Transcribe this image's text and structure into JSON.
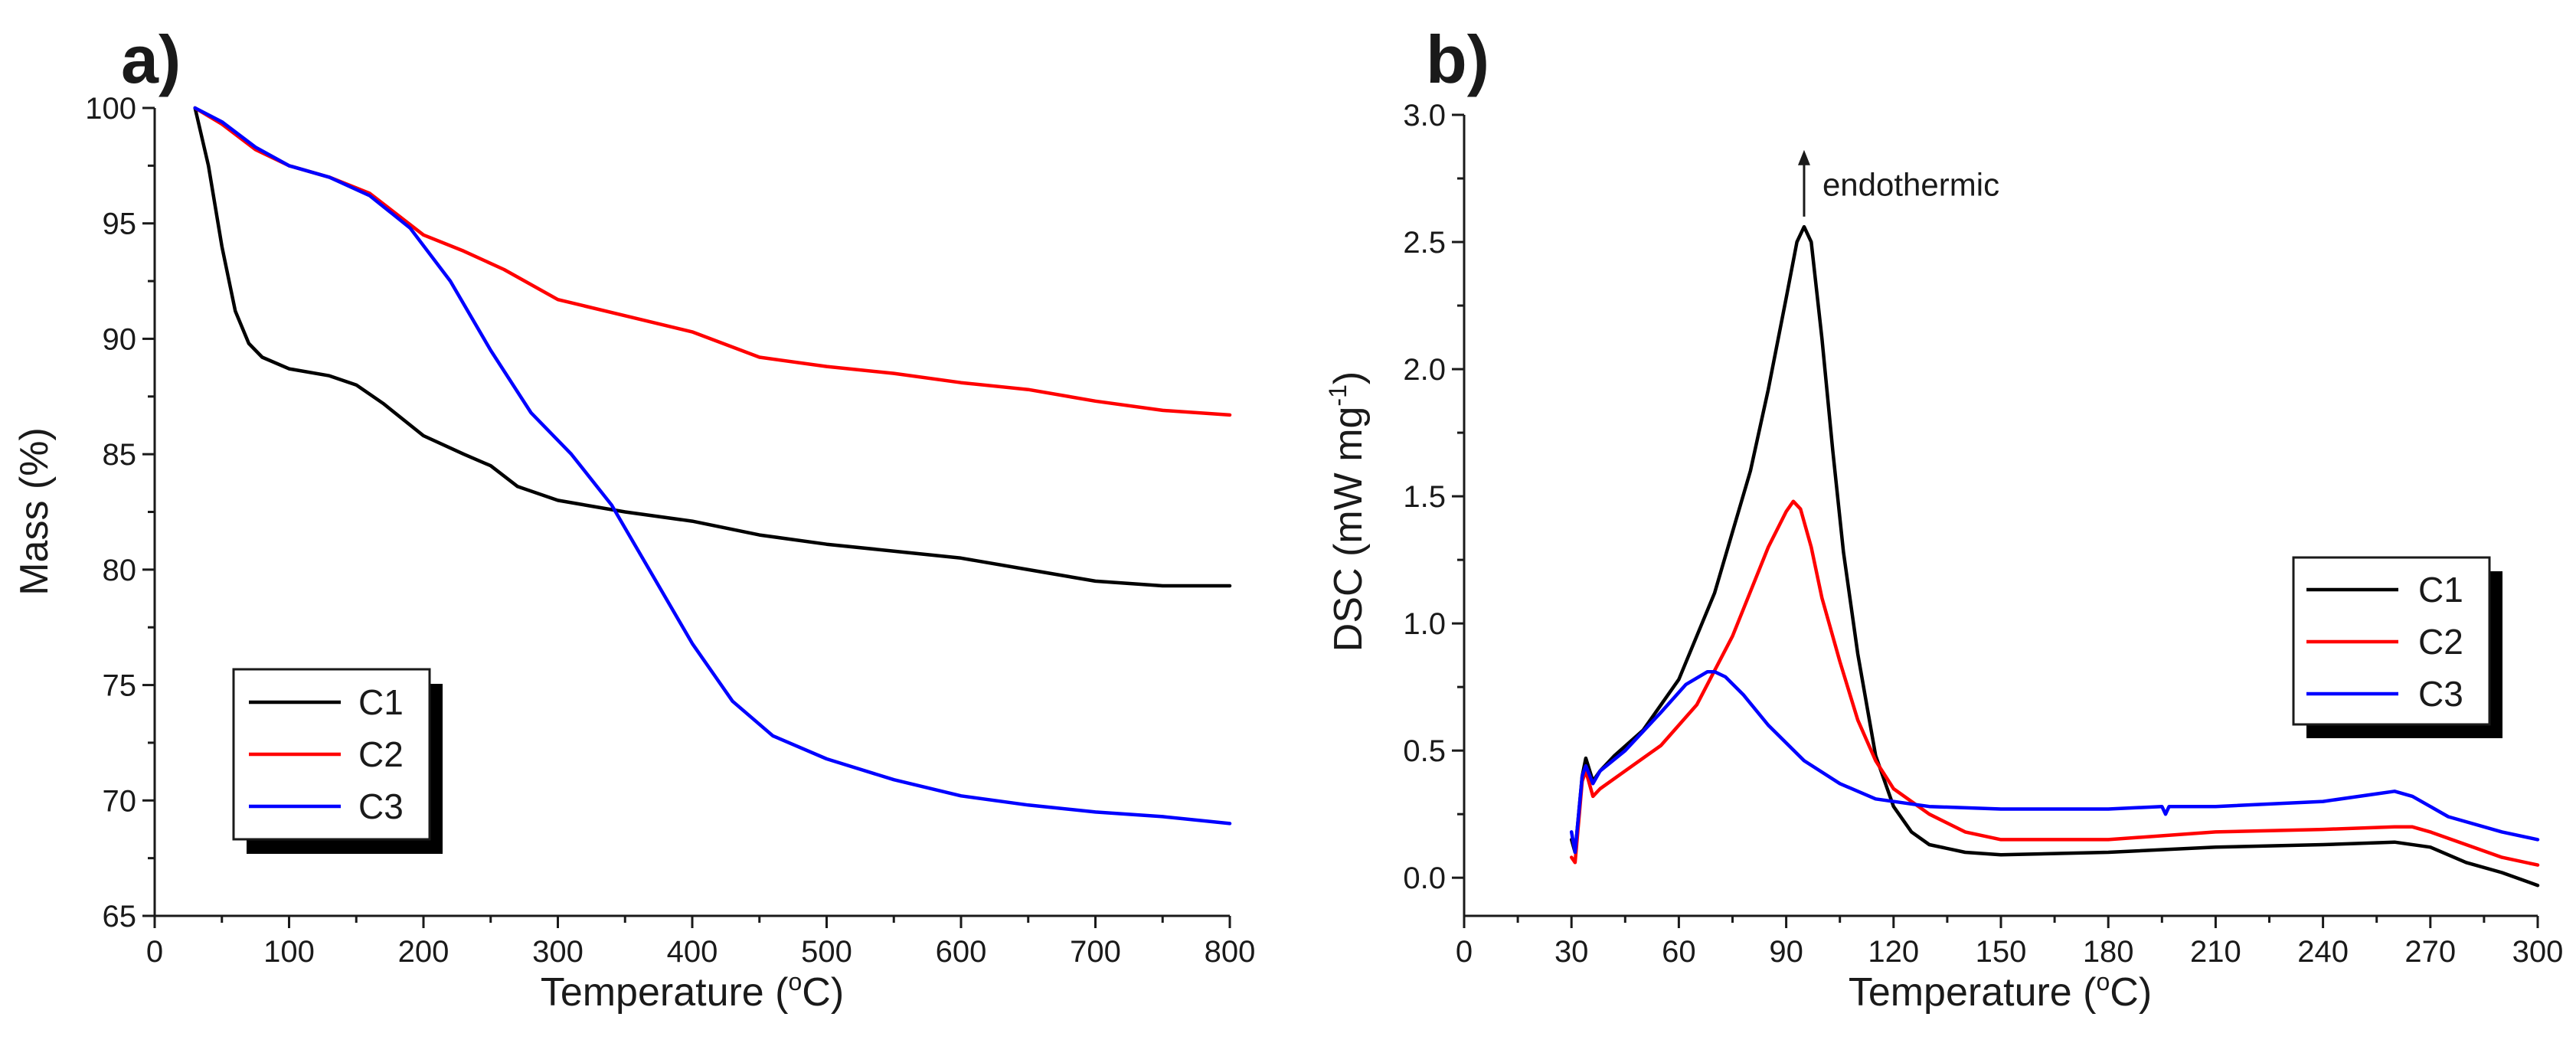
{
  "chart_data": [
    {
      "type": "line",
      "panel_label": "a)",
      "xlabel": "Temperature (",
      "xlabel_sup": "o",
      "xlabel_end": "C)",
      "ylabel": "Mass (%)",
      "xlim": [
        0,
        800
      ],
      "ylim": [
        65,
        100
      ],
      "xticks": [
        0,
        100,
        200,
        300,
        400,
        500,
        600,
        700,
        800
      ],
      "yticks": [
        65,
        70,
        75,
        80,
        85,
        90,
        95,
        100
      ],
      "xtick_labels": [
        "0",
        "100",
        "200",
        "300",
        "400",
        "500",
        "600",
        "700",
        "800"
      ],
      "ytick_labels": [
        "65",
        "70",
        "75",
        "80",
        "85",
        "90",
        "95",
        "100"
      ],
      "legend_position": "bottom-left",
      "series": [
        {
          "name": "C1",
          "color": "#000000",
          "x": [
            30,
            40,
            50,
            60,
            70,
            80,
            100,
            130,
            150,
            170,
            200,
            230,
            250,
            270,
            300,
            350,
            400,
            450,
            500,
            550,
            600,
            650,
            700,
            750,
            800
          ],
          "y": [
            100,
            97.5,
            94,
            91.2,
            89.8,
            89.2,
            88.7,
            88.4,
            88.0,
            87.2,
            85.8,
            85.0,
            84.5,
            83.6,
            83.0,
            82.5,
            82.1,
            81.5,
            81.1,
            80.8,
            80.5,
            80.0,
            79.5,
            79.3,
            79.3
          ]
        },
        {
          "name": "C2",
          "color": "#ff0000",
          "x": [
            30,
            50,
            75,
            100,
            130,
            160,
            200,
            230,
            260,
            300,
            350,
            400,
            450,
            500,
            550,
            600,
            650,
            700,
            750,
            800
          ],
          "y": [
            100,
            99.3,
            98.2,
            97.5,
            97.0,
            96.3,
            94.5,
            93.8,
            93.0,
            91.7,
            91.0,
            90.3,
            89.2,
            88.8,
            88.5,
            88.1,
            87.8,
            87.3,
            86.9,
            86.7
          ]
        },
        {
          "name": "C3",
          "color": "#0000ff",
          "x": [
            30,
            50,
            75,
            100,
            130,
            160,
            190,
            220,
            250,
            280,
            310,
            340,
            370,
            400,
            430,
            460,
            500,
            550,
            600,
            650,
            700,
            750,
            800
          ],
          "y": [
            100,
            99.4,
            98.3,
            97.5,
            97.0,
            96.2,
            94.8,
            92.5,
            89.5,
            86.8,
            85.0,
            82.8,
            79.8,
            76.8,
            74.3,
            72.8,
            71.8,
            70.9,
            70.2,
            69.8,
            69.5,
            69.3,
            69.0
          ]
        }
      ]
    },
    {
      "type": "line",
      "panel_label": "b)",
      "xlabel": "Temperature (",
      "xlabel_sup": "o",
      "xlabel_end": "C)",
      "ylabel": "DSC (mW mg",
      "ylabel_sup": "-1",
      "ylabel_end": ")",
      "xlim": [
        0,
        300
      ],
      "ylim": [
        -0.15,
        3.0
      ],
      "xticks": [
        0,
        30,
        60,
        90,
        120,
        150,
        180,
        210,
        240,
        270,
        300
      ],
      "yticks": [
        0.0,
        0.5,
        1.0,
        1.5,
        2.0,
        2.5,
        3.0
      ],
      "xtick_labels": [
        "0",
        "30",
        "60",
        "90",
        "120",
        "150",
        "180",
        "210",
        "240",
        "270",
        "300"
      ],
      "ytick_labels": [
        "0.0",
        "0.5",
        "1.0",
        "1.5",
        "2.0",
        "2.5",
        "3.0"
      ],
      "annotation": "endothermic",
      "annotation_x": 95,
      "annotation_y_from": 2.6,
      "annotation_y_to": 2.85,
      "legend_position": "right",
      "series": [
        {
          "name": "C1",
          "color": "#000000",
          "x": [
            30,
            31,
            33,
            34,
            36,
            38,
            42,
            50,
            60,
            70,
            80,
            85,
            90,
            93,
            95,
            97,
            100,
            103,
            106,
            110,
            115,
            120,
            125,
            130,
            140,
            150,
            180,
            210,
            240,
            260,
            270,
            280,
            290,
            300
          ],
          "y": [
            0.15,
            0.1,
            0.4,
            0.47,
            0.38,
            0.42,
            0.48,
            0.58,
            0.78,
            1.12,
            1.6,
            1.92,
            2.28,
            2.5,
            2.56,
            2.5,
            2.12,
            1.68,
            1.28,
            0.88,
            0.48,
            0.28,
            0.18,
            0.13,
            0.1,
            0.09,
            0.1,
            0.12,
            0.13,
            0.14,
            0.12,
            0.06,
            0.02,
            -0.03
          ]
        },
        {
          "name": "C2",
          "color": "#ff0000",
          "x": [
            30,
            31,
            33,
            34,
            36,
            38,
            45,
            55,
            65,
            75,
            85,
            90,
            92,
            94,
            97,
            100,
            105,
            110,
            115,
            120,
            130,
            140,
            150,
            180,
            210,
            240,
            260,
            265,
            270,
            280,
            290,
            300
          ],
          "y": [
            0.08,
            0.06,
            0.38,
            0.42,
            0.32,
            0.35,
            0.42,
            0.52,
            0.68,
            0.95,
            1.3,
            1.44,
            1.48,
            1.45,
            1.3,
            1.1,
            0.85,
            0.62,
            0.46,
            0.35,
            0.25,
            0.18,
            0.15,
            0.15,
            0.18,
            0.19,
            0.2,
            0.2,
            0.18,
            0.13,
            0.08,
            0.05
          ]
        },
        {
          "name": "C3",
          "color": "#0000ff",
          "x": [
            30,
            31,
            33,
            34,
            36,
            38,
            45,
            55,
            62,
            68,
            70,
            73,
            78,
            85,
            95,
            105,
            115,
            130,
            150,
            180,
            195,
            196,
            197,
            210,
            240,
            255,
            260,
            265,
            275,
            290,
            300
          ],
          "y": [
            0.18,
            0.1,
            0.4,
            0.44,
            0.37,
            0.42,
            0.5,
            0.65,
            0.76,
            0.81,
            0.81,
            0.79,
            0.72,
            0.6,
            0.46,
            0.37,
            0.31,
            0.28,
            0.27,
            0.27,
            0.28,
            0.25,
            0.28,
            0.28,
            0.3,
            0.33,
            0.34,
            0.32,
            0.24,
            0.18,
            0.15
          ]
        }
      ]
    }
  ]
}
